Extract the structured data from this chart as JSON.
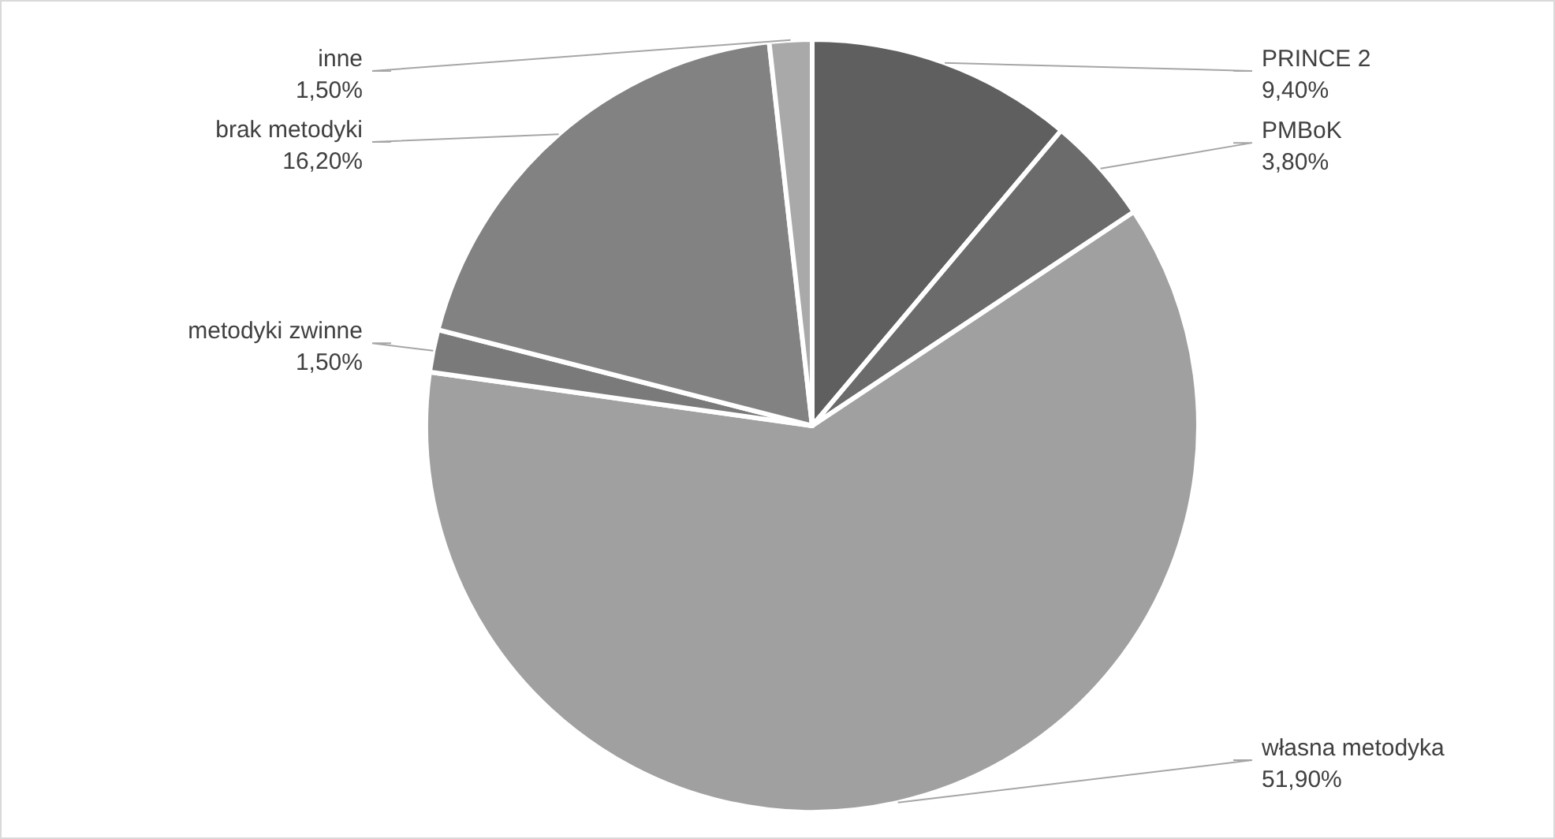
{
  "chart_data": {
    "type": "pie",
    "categories": [
      "PRINCE 2",
      "PMBoK",
      "własna metodyka",
      "metodyki zwinne",
      "brak metodyki",
      "inne"
    ],
    "values": [
      9.4,
      3.8,
      51.9,
      1.5,
      16.2,
      1.5
    ],
    "value_labels": [
      "9,40%",
      "3,80%",
      "51,90%",
      "1,50%",
      "16,20%",
      "1,50%"
    ],
    "colors": [
      "#5f5f5f",
      "#6b6b6b",
      "#a0a0a0",
      "#7a7a7a",
      "#828282",
      "#a9a9a9"
    ]
  }
}
